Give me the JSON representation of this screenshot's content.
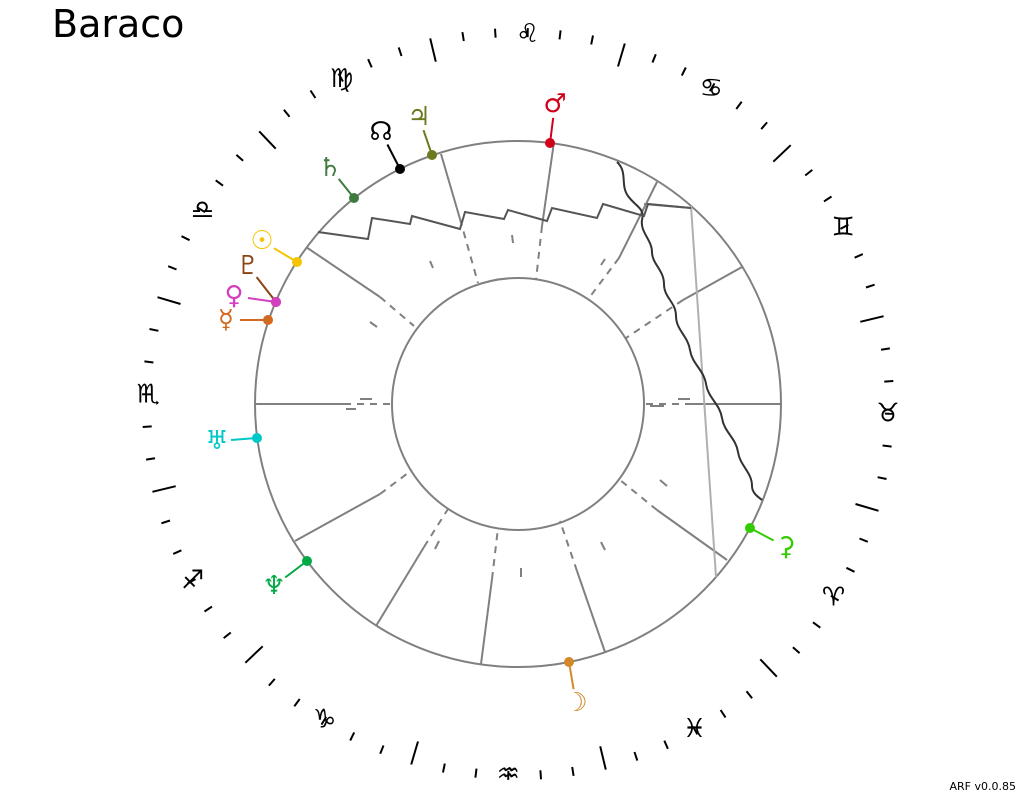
{
  "title": "Baraco",
  "version": "ARF v0.0.85",
  "signs": [
    {
      "name": "Aries",
      "glyph": "♈"
    },
    {
      "name": "Taurus",
      "glyph": "♉"
    },
    {
      "name": "Gemini",
      "glyph": "♊"
    },
    {
      "name": "Cancer",
      "glyph": "♋"
    },
    {
      "name": "Leo",
      "glyph": "♌"
    },
    {
      "name": "Virgo",
      "glyph": "♍"
    },
    {
      "name": "Libra",
      "glyph": "♎"
    },
    {
      "name": "Scorpio",
      "glyph": "♏"
    },
    {
      "name": "Sagittarius",
      "glyph": "♐"
    },
    {
      "name": "Capricorn",
      "glyph": "♑"
    },
    {
      "name": "Aquarius",
      "glyph": "♒"
    },
    {
      "name": "Pisces",
      "glyph": "♓"
    }
  ],
  "bodies": [
    {
      "name": "mars",
      "glyph": "♂",
      "color": "#d0021b"
    },
    {
      "name": "jupiter",
      "glyph": "♃",
      "color": "#6b7a1e"
    },
    {
      "name": "north-node",
      "glyph": "☊",
      "color": "#000000"
    },
    {
      "name": "saturn",
      "glyph": "♄",
      "color": "#3f7a3f"
    },
    {
      "name": "sun",
      "glyph": "☉",
      "color": "#f5c400"
    },
    {
      "name": "pluto",
      "glyph": "♇",
      "color": "#8b4513"
    },
    {
      "name": "venus",
      "glyph": "♀",
      "color": "#d43fbf"
    },
    {
      "name": "mercury",
      "glyph": "☿",
      "color": "#d2691e"
    },
    {
      "name": "uranus",
      "glyph": "♅",
      "color": "#00c8c8"
    },
    {
      "name": "neptune",
      "glyph": "♆",
      "color": "#00aa44"
    },
    {
      "name": "moon",
      "glyph": "☽",
      "color": "#d4882a"
    },
    {
      "name": "ceres",
      "glyph": "⚳",
      "color": "#33cc00"
    }
  ]
}
